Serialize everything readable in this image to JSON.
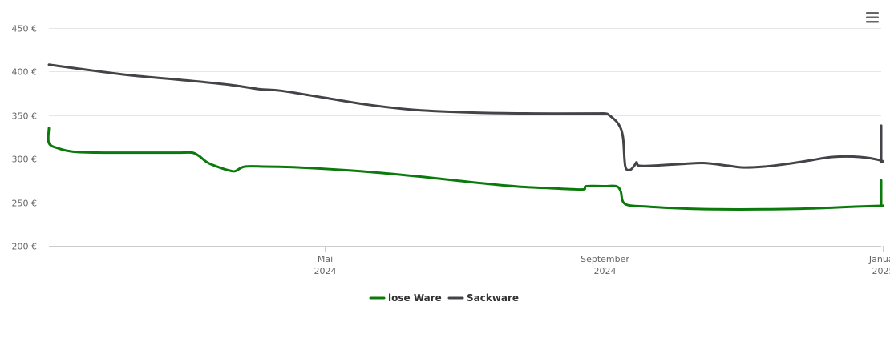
{
  "menu_icon": "hamburger-menu-icon",
  "chart_data": {
    "type": "line",
    "x_start": "2024-01-01",
    "x_end": "2025-01-31",
    "ylim": [
      200,
      450
    ],
    "y_ticks": [
      200,
      250,
      300,
      350,
      400,
      450
    ],
    "y_tick_labels": [
      "200 €",
      "250 €",
      "300 €",
      "350 €",
      "400 €",
      "450 €"
    ],
    "x_ticks": [
      {
        "date": "2024-05-01",
        "label1": "Mai",
        "label2": "2024"
      },
      {
        "date": "2024-09-01",
        "label1": "September",
        "label2": "2024"
      },
      {
        "date": "2025-01-01",
        "label1": "Januar",
        "label2": "2025"
      }
    ],
    "grid": "horizontal",
    "legend_position": "bottom-center",
    "series": [
      {
        "name": "lose Ware",
        "color": "#0a7a0a",
        "points": [
          [
            "2024-01-01",
            335
          ],
          [
            "2024-01-01",
            318
          ],
          [
            "2024-01-05",
            312
          ],
          [
            "2024-01-12",
            308
          ],
          [
            "2024-01-25",
            307
          ],
          [
            "2024-02-15",
            307
          ],
          [
            "2024-02-28",
            307
          ],
          [
            "2024-03-04",
            307
          ],
          [
            "2024-03-07",
            303
          ],
          [
            "2024-03-11",
            295
          ],
          [
            "2024-03-17",
            289
          ],
          [
            "2024-03-21",
            286
          ],
          [
            "2024-03-23",
            286
          ],
          [
            "2024-03-27",
            291
          ],
          [
            "2024-04-05",
            291
          ],
          [
            "2024-04-20",
            290
          ],
          [
            "2024-05-15",
            286
          ],
          [
            "2024-06-10",
            280
          ],
          [
            "2024-07-05",
            273
          ],
          [
            "2024-07-25",
            268
          ],
          [
            "2024-08-10",
            266
          ],
          [
            "2024-08-18",
            265
          ],
          [
            "2024-08-23",
            265
          ],
          [
            "2024-08-24",
            268.5
          ],
          [
            "2024-09-01",
            268.5
          ],
          [
            "2024-09-06",
            268.5
          ],
          [
            "2024-09-08",
            263
          ],
          [
            "2024-09-10",
            248
          ],
          [
            "2024-09-20",
            245
          ],
          [
            "2024-10-05",
            243
          ],
          [
            "2024-10-20",
            242
          ],
          [
            "2024-11-10",
            242
          ],
          [
            "2024-12-01",
            243
          ],
          [
            "2024-12-20",
            245
          ],
          [
            "2025-01-10",
            246
          ],
          [
            "2025-01-30",
            246
          ],
          [
            "2025-02-12",
            246
          ],
          [
            "2025-02-15",
            253
          ],
          [
            "2025-02-20",
            255.5
          ],
          [
            "2025-03-10",
            257
          ],
          [
            "2025-03-25",
            258
          ],
          [
            "2025-04-02",
            260
          ],
          [
            "2025-04-05",
            263
          ],
          [
            "2025-04-08",
            275
          ]
        ]
      },
      {
        "name": "Sackware",
        "color": "#434348",
        "points": [
          [
            "2024-01-01",
            408
          ],
          [
            "2024-01-15",
            403
          ],
          [
            "2024-02-05",
            396
          ],
          [
            "2024-03-01",
            390
          ],
          [
            "2024-03-20",
            385
          ],
          [
            "2024-04-02",
            380
          ],
          [
            "2024-04-12",
            378
          ],
          [
            "2024-05-01",
            370
          ],
          [
            "2024-05-20",
            362
          ],
          [
            "2024-06-10",
            356
          ],
          [
            "2024-07-05",
            353
          ],
          [
            "2024-08-01",
            352
          ],
          [
            "2024-08-27",
            352
          ],
          [
            "2024-09-01",
            352
          ],
          [
            "2024-09-03",
            350
          ],
          [
            "2024-09-07",
            340
          ],
          [
            "2024-09-09",
            325
          ],
          [
            "2024-09-10",
            292
          ],
          [
            "2024-09-12",
            287
          ],
          [
            "2024-09-14",
            292
          ],
          [
            "2024-09-15",
            296
          ],
          [
            "2024-09-16",
            292
          ],
          [
            "2024-09-22",
            292
          ],
          [
            "2024-10-05",
            294
          ],
          [
            "2024-10-15",
            295
          ],
          [
            "2024-10-25",
            292
          ],
          [
            "2024-11-01",
            290
          ],
          [
            "2024-11-10",
            291
          ],
          [
            "2024-11-20",
            294
          ],
          [
            "2024-11-30",
            298
          ],
          [
            "2024-12-10",
            302
          ],
          [
            "2024-12-22",
            302
          ],
          [
            "2025-01-05",
            298
          ],
          [
            "2025-01-15",
            296
          ],
          [
            "2025-01-20",
            298
          ],
          [
            "2025-01-25",
            302
          ],
          [
            "2025-02-05",
            302
          ],
          [
            "2025-02-10",
            302
          ],
          [
            "2025-02-20",
            299
          ],
          [
            "2025-03-05",
            298
          ],
          [
            "2025-03-20",
            298
          ],
          [
            "2025-03-25",
            302
          ],
          [
            "2025-03-31",
            309
          ],
          [
            "2025-04-04",
            314
          ],
          [
            "2025-04-08",
            317
          ],
          [
            "2025-04-11",
            318
          ],
          [
            "2025-04-12",
            330
          ],
          [
            "2025-04-13",
            338
          ]
        ]
      }
    ]
  }
}
